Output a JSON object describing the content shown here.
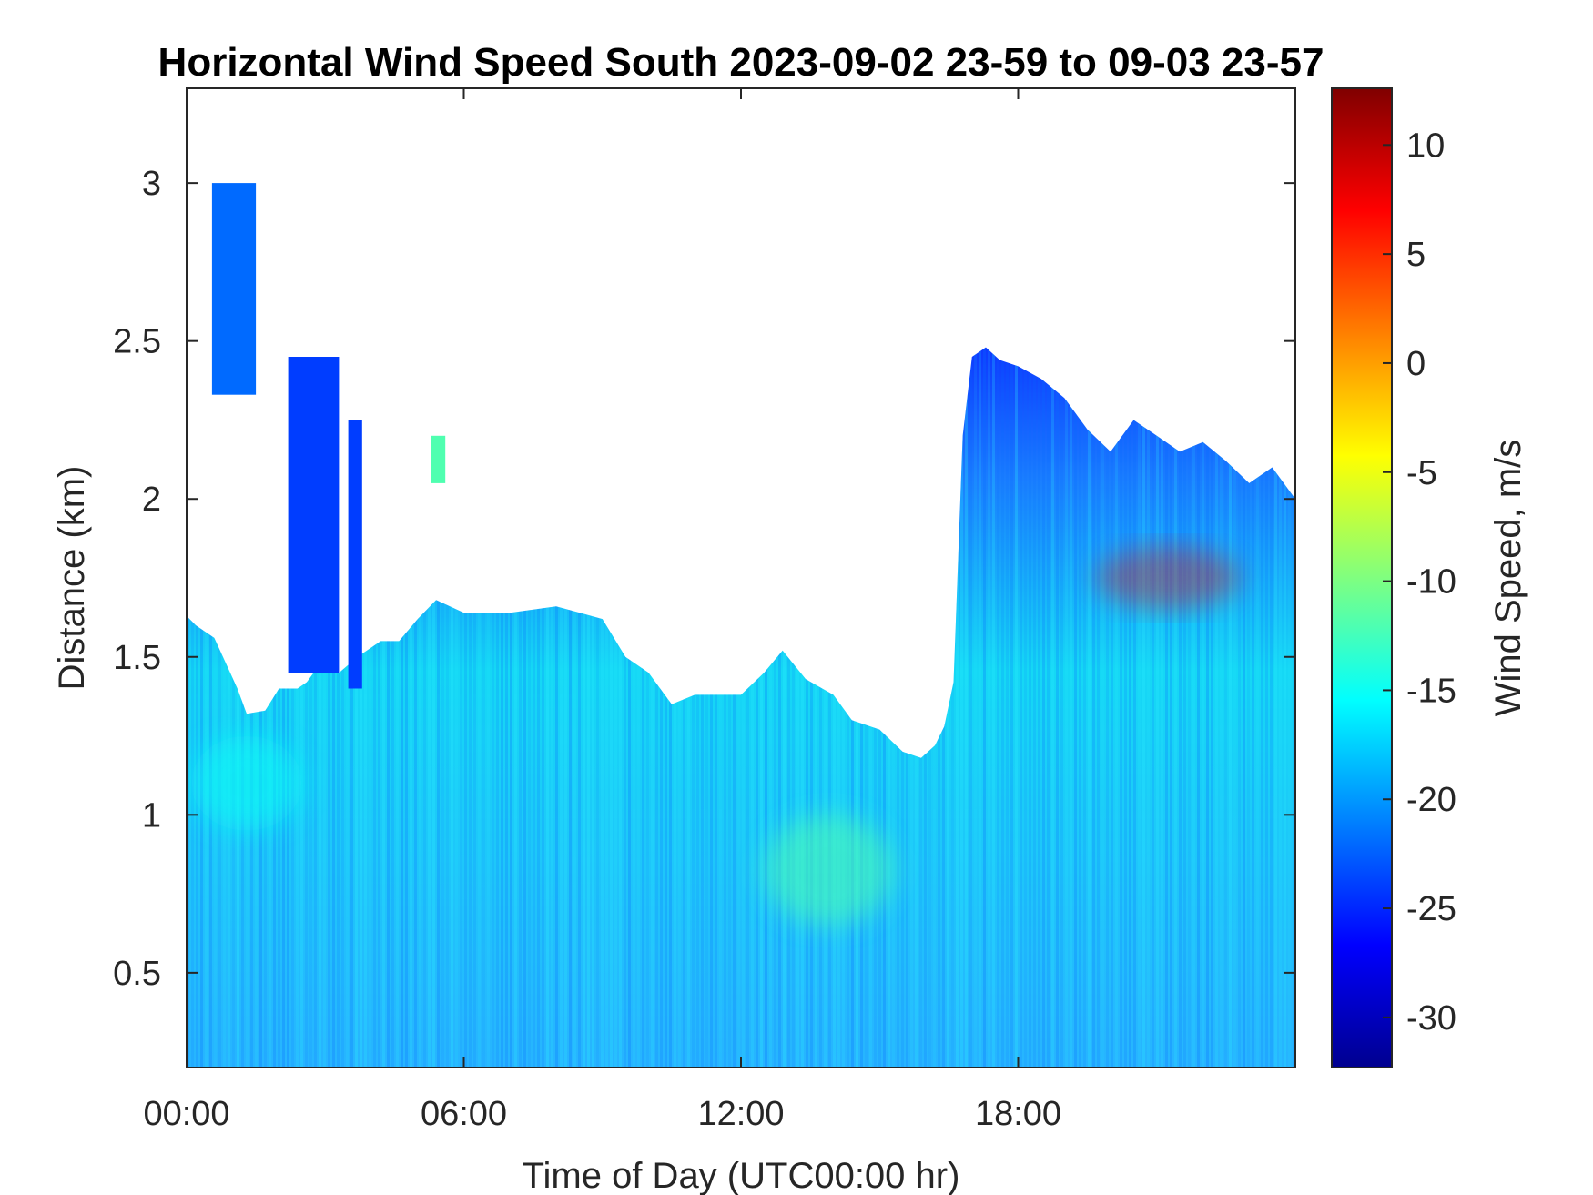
{
  "chart_data": {
    "type": "heatmap",
    "title": "Horizontal Wind Speed South 2023-09-02 23-59 to 09-03 23-57",
    "xlabel": "Time of Day (UTC00:00 hr)",
    "ylabel": "Distance (km)",
    "colorbar_label": "Wind Speed, m/s",
    "x_unit": "hours",
    "xlim": [
      0,
      24
    ],
    "ylim": [
      0.2,
      3.3
    ],
    "clim": [
      -32.3,
      12.6
    ],
    "colormap": "jet",
    "grid": false,
    "x_ticks": [
      {
        "value": 0,
        "label": "00:00"
      },
      {
        "value": 6,
        "label": "06:00"
      },
      {
        "value": 12,
        "label": "12:00"
      },
      {
        "value": 18,
        "label": "18:00"
      }
    ],
    "y_ticks": [
      {
        "value": 0.5,
        "label": "0.5"
      },
      {
        "value": 1,
        "label": "1"
      },
      {
        "value": 1.5,
        "label": "1.5"
      },
      {
        "value": 2,
        "label": "2"
      },
      {
        "value": 2.5,
        "label": "2.5"
      },
      {
        "value": 3,
        "label": "3"
      }
    ],
    "colorbar_ticks": [
      {
        "value": 10,
        "label": "10"
      },
      {
        "value": 5,
        "label": "5"
      },
      {
        "value": 0,
        "label": "0"
      },
      {
        "value": -5,
        "label": "-5"
      },
      {
        "value": -10,
        "label": "-10"
      },
      {
        "value": -15,
        "label": "-15"
      },
      {
        "value": -20,
        "label": "-20"
      },
      {
        "value": -25,
        "label": "-25"
      },
      {
        "value": -30,
        "label": "-30"
      }
    ],
    "data_top_profile": [
      [
        0.0,
        1.63
      ],
      [
        0.2,
        1.6
      ],
      [
        0.6,
        1.56
      ],
      [
        1.1,
        1.4
      ],
      [
        1.3,
        1.32
      ],
      [
        1.7,
        1.33
      ],
      [
        2.0,
        1.4
      ],
      [
        2.4,
        1.4
      ],
      [
        2.6,
        1.42
      ],
      [
        3.0,
        1.5
      ],
      [
        3.3,
        1.45
      ],
      [
        3.7,
        1.5
      ],
      [
        4.2,
        1.55
      ],
      [
        4.6,
        1.55
      ],
      [
        5.0,
        1.62
      ],
      [
        5.4,
        1.68
      ],
      [
        6.0,
        1.64
      ],
      [
        7.0,
        1.64
      ],
      [
        8.0,
        1.66
      ],
      [
        9.0,
        1.62
      ],
      [
        9.5,
        1.5
      ],
      [
        10.0,
        1.45
      ],
      [
        10.5,
        1.35
      ],
      [
        11.0,
        1.38
      ],
      [
        12.0,
        1.38
      ],
      [
        12.5,
        1.45
      ],
      [
        12.9,
        1.52
      ],
      [
        13.4,
        1.43
      ],
      [
        14.0,
        1.38
      ],
      [
        14.4,
        1.3
      ],
      [
        15.0,
        1.27
      ],
      [
        15.5,
        1.2
      ],
      [
        15.9,
        1.18
      ],
      [
        16.2,
        1.22
      ],
      [
        16.4,
        1.28
      ],
      [
        16.6,
        1.42
      ],
      [
        16.8,
        2.2
      ],
      [
        17.0,
        2.45
      ],
      [
        17.3,
        2.48
      ],
      [
        17.6,
        2.44
      ],
      [
        18.0,
        2.42
      ],
      [
        18.5,
        2.38
      ],
      [
        19.0,
        2.32
      ],
      [
        19.5,
        2.22
      ],
      [
        20.0,
        2.15
      ],
      [
        20.5,
        2.25
      ],
      [
        21.0,
        2.2
      ],
      [
        21.5,
        2.15
      ],
      [
        22.0,
        2.18
      ],
      [
        22.5,
        2.12
      ],
      [
        23.0,
        2.05
      ],
      [
        23.5,
        2.1
      ],
      [
        24.0,
        2.0
      ]
    ],
    "data_patches": [
      {
        "x": [
          0.55,
          1.5
        ],
        "y": [
          2.33,
          3.0
        ],
        "value": -22
      },
      {
        "x": [
          2.2,
          3.3
        ],
        "y": [
          1.45,
          2.45
        ],
        "value": -24
      },
      {
        "x": [
          3.5,
          3.8
        ],
        "y": [
          1.4,
          2.25
        ],
        "value": -24
      },
      {
        "x": [
          5.3,
          5.6
        ],
        "y": [
          2.05,
          2.2
        ],
        "value": -12
      }
    ],
    "data_fields": [
      {
        "x": [
          12.5,
          15.3
        ],
        "y": [
          0.65,
          1.0
        ],
        "value": -12
      },
      {
        "x": [
          0.1,
          2.5
        ],
        "y": [
          0.95,
          1.25
        ],
        "value": -15
      },
      {
        "x": [
          19.7,
          22.8
        ],
        "y": [
          1.65,
          1.85
        ],
        "value": 8
      }
    ]
  }
}
